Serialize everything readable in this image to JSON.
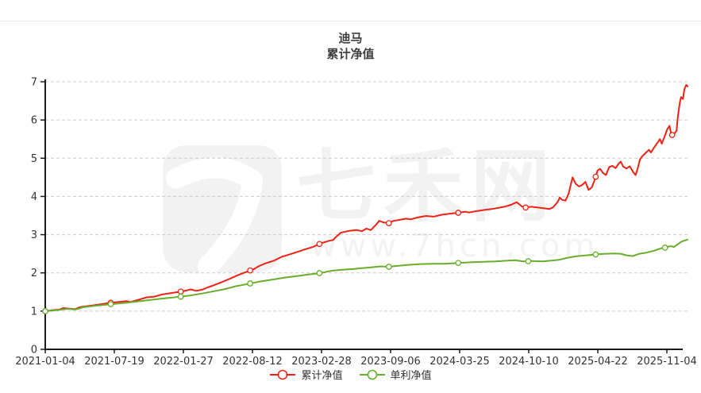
{
  "title": {
    "line1": "迪马",
    "line2": "累计净值"
  },
  "watermark": {
    "brand": "七禾网",
    "url": "www.7hcn.com",
    "logo_glyph": "7",
    "color": "#f2f2f2"
  },
  "legend": [
    {
      "label": "累计净值",
      "color": "#ed2215"
    },
    {
      "label": "单利净值",
      "color": "#68ad2c"
    }
  ],
  "chart_data": {
    "type": "line",
    "title": "迪马",
    "subtitle": "累计净值",
    "xlabel": "",
    "ylabel": "",
    "ylim": [
      0,
      7
    ],
    "y_ticks": [
      0,
      1,
      2,
      3,
      4,
      5,
      6,
      7
    ],
    "x_tick_labels": [
      "2021-01-04",
      "2021-07-19",
      "2022-01-27",
      "2022-08-12",
      "2023-02-28",
      "2023-09-06",
      "2024-03-25",
      "2024-10-10",
      "2025-04-22",
      "2025-11-04"
    ],
    "grid": "horizontal-dashed",
    "legend_position": "bottom-center",
    "axis_color": "#1a1a1a",
    "grid_color": "#cccccc",
    "label_color": "#333333",
    "series": [
      {
        "name": "累计净值",
        "color": "#ed2215",
        "marker_ts": [
          0,
          0.102,
          0.211,
          0.319,
          0.427,
          0.535,
          0.643,
          0.748,
          0.857,
          0.976
        ],
        "points": [
          [
            0,
            1.0
          ],
          [
            0.01,
            1.02
          ],
          [
            0.022,
            1.04
          ],
          [
            0.028,
            1.08
          ],
          [
            0.041,
            1.06
          ],
          [
            0.047,
            1.05
          ],
          [
            0.053,
            1.1
          ],
          [
            0.065,
            1.13
          ],
          [
            0.078,
            1.16
          ],
          [
            0.09,
            1.19
          ],
          [
            0.102,
            1.22
          ],
          [
            0.115,
            1.24
          ],
          [
            0.127,
            1.26
          ],
          [
            0.133,
            1.24
          ],
          [
            0.146,
            1.3
          ],
          [
            0.158,
            1.36
          ],
          [
            0.17,
            1.38
          ],
          [
            0.183,
            1.44
          ],
          [
            0.195,
            1.47
          ],
          [
            0.207,
            1.5
          ],
          [
            0.22,
            1.54
          ],
          [
            0.226,
            1.57
          ],
          [
            0.235,
            1.53
          ],
          [
            0.244,
            1.56
          ],
          [
            0.253,
            1.62
          ],
          [
            0.263,
            1.68
          ],
          [
            0.275,
            1.76
          ],
          [
            0.288,
            1.85
          ],
          [
            0.3,
            1.94
          ],
          [
            0.312,
            2.02
          ],
          [
            0.325,
            2.1
          ],
          [
            0.333,
            2.18
          ],
          [
            0.343,
            2.25
          ],
          [
            0.356,
            2.32
          ],
          [
            0.368,
            2.42
          ],
          [
            0.38,
            2.48
          ],
          [
            0.393,
            2.55
          ],
          [
            0.405,
            2.62
          ],
          [
            0.417,
            2.68
          ],
          [
            0.43,
            2.78
          ],
          [
            0.442,
            2.84
          ],
          [
            0.448,
            2.86
          ],
          [
            0.454,
            2.96
          ],
          [
            0.46,
            3.05
          ],
          [
            0.473,
            3.1
          ],
          [
            0.485,
            3.12
          ],
          [
            0.493,
            3.09
          ],
          [
            0.5,
            3.16
          ],
          [
            0.507,
            3.12
          ],
          [
            0.515,
            3.26
          ],
          [
            0.52,
            3.36
          ],
          [
            0.527,
            3.32
          ],
          [
            0.535,
            3.3
          ],
          [
            0.542,
            3.36
          ],
          [
            0.549,
            3.38
          ],
          [
            0.562,
            3.42
          ],
          [
            0.569,
            3.4
          ],
          [
            0.58,
            3.45
          ],
          [
            0.593,
            3.49
          ],
          [
            0.605,
            3.47
          ],
          [
            0.617,
            3.52
          ],
          [
            0.63,
            3.55
          ],
          [
            0.642,
            3.57
          ],
          [
            0.654,
            3.6
          ],
          [
            0.66,
            3.58
          ],
          [
            0.673,
            3.62
          ],
          [
            0.685,
            3.65
          ],
          [
            0.695,
            3.67
          ],
          [
            0.705,
            3.7
          ],
          [
            0.715,
            3.73
          ],
          [
            0.725,
            3.78
          ],
          [
            0.734,
            3.85
          ],
          [
            0.742,
            3.74
          ],
          [
            0.748,
            3.71
          ],
          [
            0.757,
            3.73
          ],
          [
            0.767,
            3.71
          ],
          [
            0.777,
            3.69
          ],
          [
            0.785,
            3.67
          ],
          [
            0.791,
            3.72
          ],
          [
            0.798,
            3.86
          ],
          [
            0.801,
            3.97
          ],
          [
            0.805,
            3.91
          ],
          [
            0.81,
            3.89
          ],
          [
            0.815,
            4.08
          ],
          [
            0.821,
            4.5
          ],
          [
            0.826,
            4.33
          ],
          [
            0.831,
            4.26
          ],
          [
            0.836,
            4.3
          ],
          [
            0.841,
            4.38
          ],
          [
            0.846,
            4.17
          ],
          [
            0.851,
            4.24
          ],
          [
            0.856,
            4.46
          ],
          [
            0.86,
            4.68
          ],
          [
            0.864,
            4.72
          ],
          [
            0.868,
            4.62
          ],
          [
            0.873,
            4.56
          ],
          [
            0.878,
            4.77
          ],
          [
            0.883,
            4.8
          ],
          [
            0.888,
            4.74
          ],
          [
            0.893,
            4.86
          ],
          [
            0.896,
            4.91
          ],
          [
            0.9,
            4.78
          ],
          [
            0.905,
            4.73
          ],
          [
            0.91,
            4.79
          ],
          [
            0.915,
            4.65
          ],
          [
            0.919,
            4.56
          ],
          [
            0.922,
            4.7
          ],
          [
            0.926,
            4.97
          ],
          [
            0.93,
            5.06
          ],
          [
            0.935,
            5.14
          ],
          [
            0.94,
            5.22
          ],
          [
            0.943,
            5.15
          ],
          [
            0.948,
            5.28
          ],
          [
            0.953,
            5.4
          ],
          [
            0.957,
            5.5
          ],
          [
            0.96,
            5.38
          ],
          [
            0.964,
            5.55
          ],
          [
            0.968,
            5.74
          ],
          [
            0.972,
            5.85
          ],
          [
            0.975,
            5.6
          ],
          [
            0.979,
            5.63
          ],
          [
            0.983,
            5.72
          ],
          [
            0.985,
            6.1
          ],
          [
            0.988,
            6.45
          ],
          [
            0.99,
            6.6
          ],
          [
            0.993,
            6.55
          ],
          [
            0.995,
            6.8
          ],
          [
            0.998,
            6.92
          ],
          [
            1.0,
            6.88
          ]
        ]
      },
      {
        "name": "单利净值",
        "color": "#68ad2c",
        "marker_ts": [
          0,
          0.102,
          0.211,
          0.319,
          0.427,
          0.535,
          0.643,
          0.752,
          0.857,
          0.965
        ],
        "points": [
          [
            0,
            1.0
          ],
          [
            0.016,
            1.02
          ],
          [
            0.035,
            1.06
          ],
          [
            0.047,
            1.04
          ],
          [
            0.059,
            1.1
          ],
          [
            0.078,
            1.14
          ],
          [
            0.102,
            1.18
          ],
          [
            0.127,
            1.22
          ],
          [
            0.152,
            1.27
          ],
          [
            0.177,
            1.32
          ],
          [
            0.201,
            1.36
          ],
          [
            0.211,
            1.38
          ],
          [
            0.226,
            1.41
          ],
          [
            0.244,
            1.46
          ],
          [
            0.263,
            1.52
          ],
          [
            0.281,
            1.58
          ],
          [
            0.296,
            1.65
          ],
          [
            0.312,
            1.7
          ],
          [
            0.333,
            1.77
          ],
          [
            0.356,
            1.83
          ],
          [
            0.374,
            1.88
          ],
          [
            0.393,
            1.92
          ],
          [
            0.411,
            1.96
          ],
          [
            0.43,
            2.0
          ],
          [
            0.444,
            2.05
          ],
          [
            0.46,
            2.08
          ],
          [
            0.479,
            2.1
          ],
          [
            0.491,
            2.12
          ],
          [
            0.51,
            2.15
          ],
          [
            0.522,
            2.17
          ],
          [
            0.535,
            2.16
          ],
          [
            0.547,
            2.18
          ],
          [
            0.565,
            2.21
          ],
          [
            0.584,
            2.23
          ],
          [
            0.602,
            2.24
          ],
          [
            0.621,
            2.24
          ],
          [
            0.643,
            2.26
          ],
          [
            0.664,
            2.28
          ],
          [
            0.683,
            2.29
          ],
          [
            0.701,
            2.3
          ],
          [
            0.72,
            2.32
          ],
          [
            0.732,
            2.33
          ],
          [
            0.744,
            2.3
          ],
          [
            0.759,
            2.31
          ],
          [
            0.774,
            2.3
          ],
          [
            0.788,
            2.32
          ],
          [
            0.8,
            2.34
          ],
          [
            0.812,
            2.39
          ],
          [
            0.825,
            2.43
          ],
          [
            0.837,
            2.45
          ],
          [
            0.849,
            2.47
          ],
          [
            0.862,
            2.49
          ],
          [
            0.874,
            2.5
          ],
          [
            0.886,
            2.51
          ],
          [
            0.896,
            2.5
          ],
          [
            0.905,
            2.46
          ],
          [
            0.915,
            2.44
          ],
          [
            0.925,
            2.5
          ],
          [
            0.936,
            2.53
          ],
          [
            0.948,
            2.58
          ],
          [
            0.958,
            2.64
          ],
          [
            0.965,
            2.66
          ],
          [
            0.973,
            2.7
          ],
          [
            0.979,
            2.68
          ],
          [
            0.985,
            2.75
          ],
          [
            0.991,
            2.82
          ],
          [
            1.0,
            2.87
          ]
        ]
      }
    ]
  }
}
